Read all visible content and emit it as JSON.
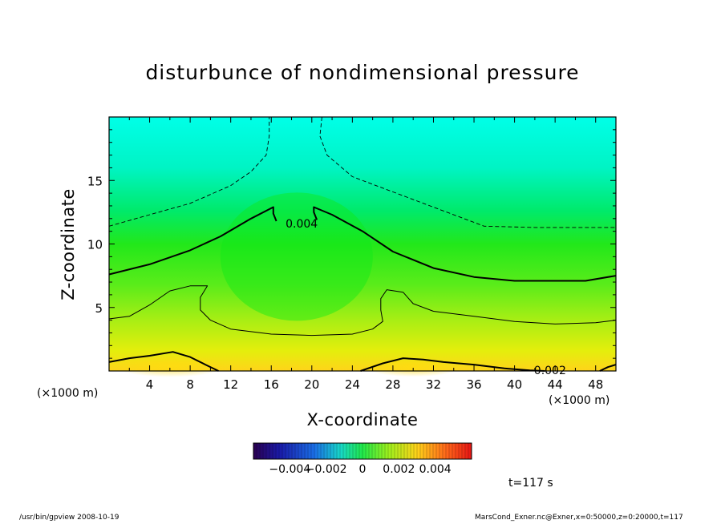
{
  "chart_data": {
    "type": "heatmap",
    "title": "disturbunce of nondimensional pressure",
    "xlabel": "X-coordinate",
    "ylabel": "Z-coordinate",
    "x_unit": "(×1000 m)",
    "xlim": [
      0,
      50
    ],
    "ylim": [
      0,
      20
    ],
    "x_ticks": [
      4,
      8,
      12,
      16,
      20,
      24,
      28,
      32,
      36,
      40,
      44,
      48
    ],
    "y_ticks": [
      5,
      10,
      15
    ],
    "contour_labels": [
      {
        "text": "0.004",
        "x": 19.0,
        "z": 11.6
      },
      {
        "text": "0.002",
        "x": 43.5,
        "z": 0.05
      }
    ],
    "colorbar": {
      "tick_labels": [
        "−0.004",
        "−0.002",
        "0",
        "0.002",
        "0.004"
      ],
      "tick_values": [
        -0.004,
        -0.002,
        0,
        0.002,
        0.004
      ],
      "range": [
        -0.006,
        0.006
      ]
    },
    "time_label": "t=117 s",
    "contours": [
      {
        "level": "dashed-upper",
        "style": "dashed",
        "width": 0.9,
        "points": [
          [
            0,
            11.4
          ],
          [
            4,
            12.3
          ],
          [
            8,
            13.2
          ],
          [
            12,
            14.6
          ],
          [
            14,
            15.7
          ],
          [
            15.5,
            17
          ],
          [
            15.8,
            18.5
          ],
          [
            15.8,
            20
          ]
        ]
      },
      {
        "level": "dashed-upper-right",
        "style": "dashed",
        "width": 0.9,
        "points": [
          [
            21,
            20
          ],
          [
            20.8,
            18.5
          ],
          [
            21.5,
            17
          ],
          [
            24,
            15.3
          ],
          [
            28,
            14.1
          ],
          [
            33,
            12.6
          ],
          [
            37,
            11.4
          ],
          [
            42,
            11.3
          ],
          [
            46,
            11.3
          ],
          [
            50,
            11.3
          ]
        ]
      },
      {
        "level": 0.004,
        "style": "solid",
        "width": 2.0,
        "points": [
          [
            0,
            7.6
          ],
          [
            4,
            8.4
          ],
          [
            8,
            9.5
          ],
          [
            11,
            10.6
          ],
          [
            14,
            12
          ],
          [
            16.2,
            12.9
          ],
          [
            16.2,
            12.4
          ],
          [
            16.5,
            11.8
          ]
        ]
      },
      {
        "level": 0.004,
        "style": "solid",
        "width": 2.0,
        "points": [
          [
            20.5,
            11.9
          ],
          [
            20.2,
            12.5
          ],
          [
            20.2,
            12.9
          ],
          [
            22,
            12.3
          ],
          [
            25,
            11
          ],
          [
            28,
            9.4
          ],
          [
            32,
            8.1
          ],
          [
            36,
            7.4
          ],
          [
            40,
            7.1
          ],
          [
            44,
            7.1
          ],
          [
            47,
            7.1
          ],
          [
            50,
            7.5
          ]
        ]
      },
      {
        "level": "mid",
        "style": "solid",
        "width": 1.0,
        "points": [
          [
            0,
            4.1
          ],
          [
            2,
            4.3
          ],
          [
            4,
            5.2
          ],
          [
            6,
            6.3
          ],
          [
            8,
            6.7
          ],
          [
            9.7,
            6.7
          ],
          [
            9,
            5.8
          ],
          [
            9,
            4.8
          ],
          [
            10,
            4
          ],
          [
            12,
            3.3
          ],
          [
            16,
            2.9
          ],
          [
            20,
            2.8
          ],
          [
            24,
            2.9
          ],
          [
            26,
            3.3
          ],
          [
            27,
            3.9
          ],
          [
            26.8,
            4.8
          ],
          [
            26.8,
            5.7
          ],
          [
            27.4,
            6.4
          ],
          [
            29,
            6.2
          ],
          [
            30,
            5.3
          ],
          [
            32,
            4.7
          ],
          [
            36,
            4.3
          ],
          [
            40,
            3.9
          ],
          [
            44,
            3.7
          ],
          [
            48,
            3.8
          ],
          [
            50,
            4.0
          ]
        ]
      },
      {
        "level": 0.002,
        "style": "solid",
        "width": 2.0,
        "points": [
          [
            0,
            0.7
          ],
          [
            2,
            1.0
          ],
          [
            4,
            1.2
          ],
          [
            6.3,
            1.5
          ],
          [
            8,
            1.1
          ],
          [
            9.5,
            0.5
          ],
          [
            10.8,
            0
          ]
        ]
      },
      {
        "level": 0.002,
        "style": "solid",
        "width": 2.0,
        "points": [
          [
            24.8,
            0
          ],
          [
            27,
            0.6
          ],
          [
            29,
            1.0
          ],
          [
            31,
            0.9
          ],
          [
            33,
            0.7
          ],
          [
            36,
            0.5
          ],
          [
            39,
            0.2
          ],
          [
            41.5,
            0.05
          ],
          [
            43,
            0
          ]
        ]
      },
      {
        "level": 0.002,
        "style": "solid",
        "width": 2.0,
        "points": [
          [
            48.4,
            0
          ],
          [
            49.2,
            0.3
          ],
          [
            50,
            0.5
          ]
        ]
      }
    ]
  },
  "footer": {
    "left": "/usr/bin/gpview   2008-10-19",
    "right": "MarsCond_Exner.nc@Exner,x=0:50000,z=0:20000,t=117"
  }
}
